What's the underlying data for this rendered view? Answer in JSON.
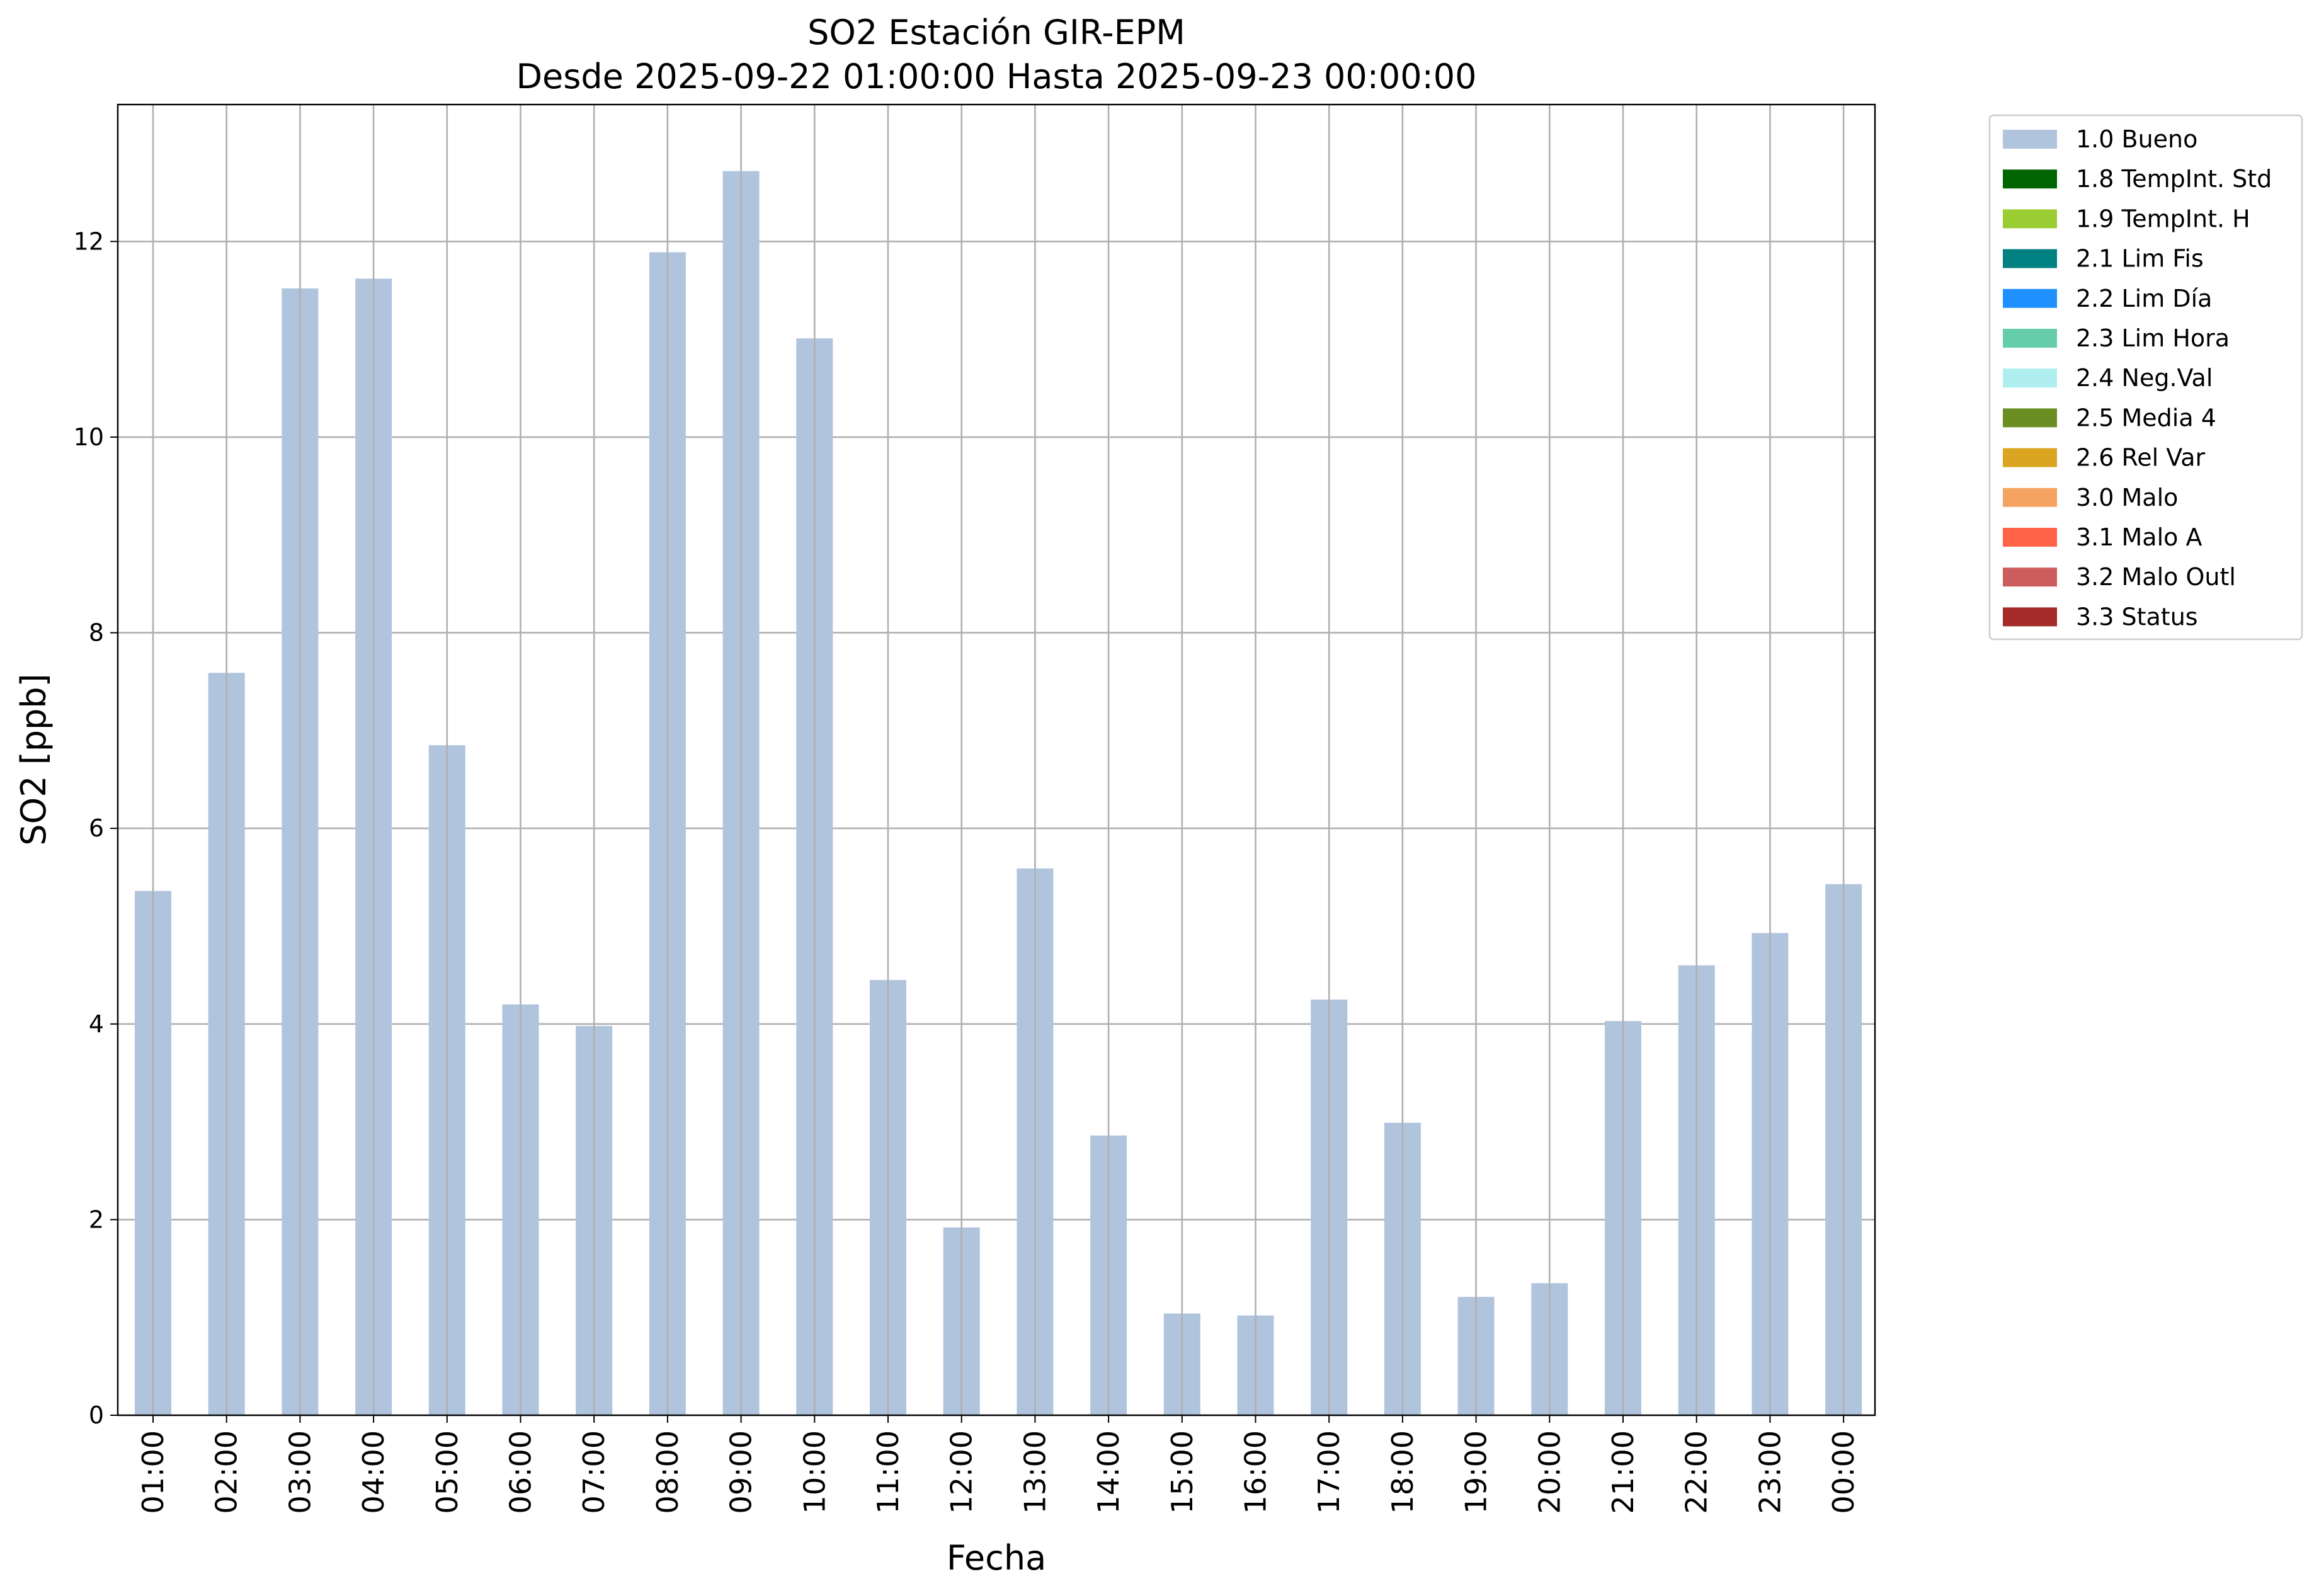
{
  "chart_data": {
    "type": "bar",
    "title": "SO2 Estación GIR-EPM",
    "subtitle": "Desde 2025-09-22 01:00:00 Hasta 2025-09-23 00:00:00",
    "xlabel": "Fecha",
    "ylabel": "SO2 [ppb]",
    "ylim": [
      0,
      13.4
    ],
    "yticks": [
      0,
      2,
      4,
      6,
      8,
      10,
      12
    ],
    "grid": true,
    "legend_position": "outside-top-right",
    "categories": [
      "01:00",
      "02:00",
      "03:00",
      "04:00",
      "05:00",
      "06:00",
      "07:00",
      "08:00",
      "09:00",
      "10:00",
      "11:00",
      "12:00",
      "13:00",
      "14:00",
      "15:00",
      "16:00",
      "17:00",
      "18:00",
      "19:00",
      "20:00",
      "21:00",
      "22:00",
      "23:00",
      "00:00"
    ],
    "series": [
      {
        "name": "1.0 Bueno",
        "color": "#b0c4de",
        "values": [
          5.36,
          7.59,
          11.52,
          11.62,
          6.85,
          4.2,
          3.98,
          11.89,
          12.72,
          11.01,
          4.45,
          1.92,
          5.59,
          2.86,
          1.04,
          1.02,
          4.25,
          2.99,
          1.21,
          1.35,
          4.03,
          4.6,
          4.93,
          5.43
        ]
      }
    ],
    "legend": [
      {
        "label": "1.0 Bueno",
        "color": "#b0c4de"
      },
      {
        "label": "1.8 TempInt. Std",
        "color": "#006400"
      },
      {
        "label": "1.9 TempInt. H",
        "color": "#9acd32"
      },
      {
        "label": "2.1 Lim Fis",
        "color": "#008080"
      },
      {
        "label": "2.2 Lim Día",
        "color": "#1e90ff"
      },
      {
        "label": "2.3 Lim Hora",
        "color": "#66cdaa"
      },
      {
        "label": "2.4 Neg.Val",
        "color": "#afeeee"
      },
      {
        "label": "2.5 Media 4",
        "color": "#6b8e23"
      },
      {
        "label": "2.6 Rel Var",
        "color": "#daa520"
      },
      {
        "label": "3.0 Malo",
        "color": "#f4a460"
      },
      {
        "label": "3.1 Malo A",
        "color": "#ff6347"
      },
      {
        "label": "3.2 Malo Outl",
        "color": "#cd5c5c"
      },
      {
        "label": "3.3 Status",
        "color": "#a52a2a"
      }
    ]
  }
}
